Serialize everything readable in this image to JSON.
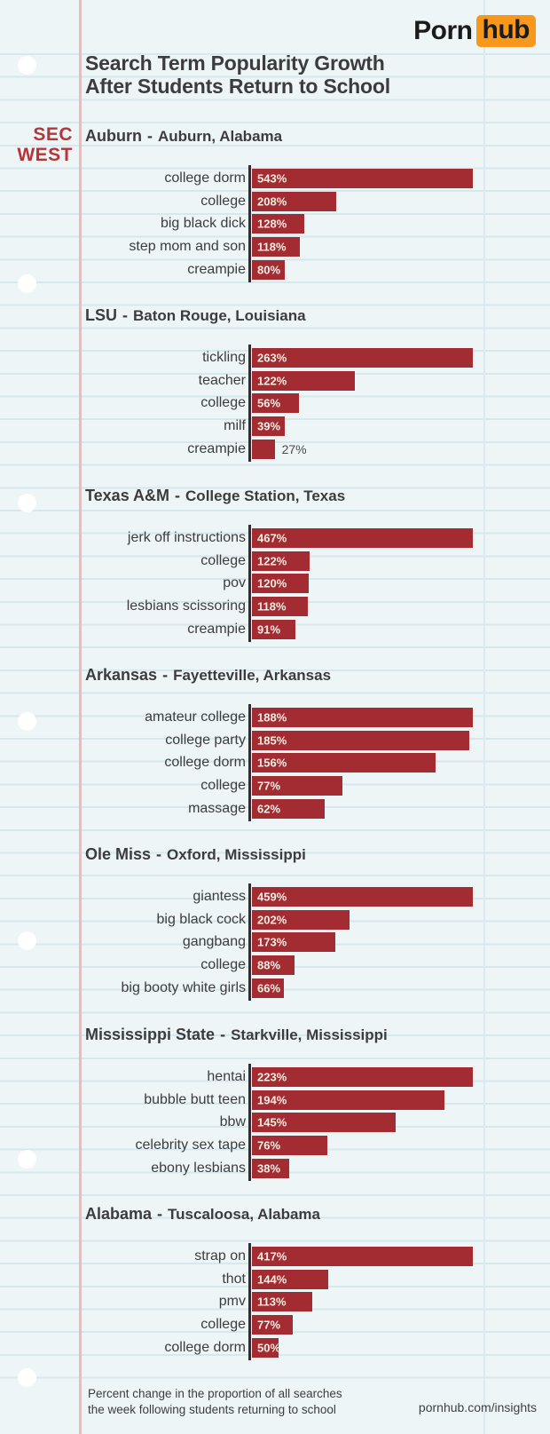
{
  "brand": {
    "porn": "Porn",
    "hub": "hub"
  },
  "header": {
    "title_line1": "Search Term Popularity Growth",
    "title_line2": "After Students Return to School"
  },
  "division": {
    "line1": "SEC",
    "line2": "WEST"
  },
  "heading_separator": "-",
  "chart_data": [
    {
      "type": "bar",
      "school": "Auburn",
      "location": "Auburn, Alabama",
      "unit": "%",
      "rows": [
        {
          "term": "college dorm",
          "value": 543,
          "label": "543%"
        },
        {
          "term": "college",
          "value": 208,
          "label": "208%"
        },
        {
          "term": "big black dick",
          "value": 128,
          "label": "128%"
        },
        {
          "term": "step mom and son",
          "value": 118,
          "label": "118%"
        },
        {
          "term": "creampie",
          "value": 80,
          "label": "80%"
        }
      ]
    },
    {
      "type": "bar",
      "school": "LSU",
      "location": "Baton Rouge, Louisiana",
      "unit": "%",
      "rows": [
        {
          "term": "tickling",
          "value": 263,
          "label": "263%"
        },
        {
          "term": "teacher",
          "value": 122,
          "label": "122%"
        },
        {
          "term": "college",
          "value": 56,
          "label": "56%"
        },
        {
          "term": "milf",
          "value": 39,
          "label": "39%"
        },
        {
          "term": "creampie",
          "value": 27,
          "label": "27%",
          "label_outside": true
        }
      ]
    },
    {
      "type": "bar",
      "school": "Texas A&M",
      "location": "College Station, Texas",
      "unit": "%",
      "rows": [
        {
          "term": "jerk off instructions",
          "value": 467,
          "label": "467%"
        },
        {
          "term": "college",
          "value": 122,
          "label": "122%"
        },
        {
          "term": "pov",
          "value": 120,
          "label": "120%"
        },
        {
          "term": "lesbians scissoring",
          "value": 118,
          "label": "118%"
        },
        {
          "term": "creampie",
          "value": 91,
          "label": "91%"
        }
      ]
    },
    {
      "type": "bar",
      "school": "Arkansas",
      "location": "Fayetteville, Arkansas",
      "unit": "%",
      "rows": [
        {
          "term": "amateur college",
          "value": 188,
          "label": "188%"
        },
        {
          "term": "college party",
          "value": 185,
          "label": "185%"
        },
        {
          "term": "college dorm",
          "value": 156,
          "label": "156%"
        },
        {
          "term": "college",
          "value": 77,
          "label": "77%"
        },
        {
          "term": "massage",
          "value": 62,
          "label": "62%"
        }
      ]
    },
    {
      "type": "bar",
      "school": "Ole Miss",
      "location": "Oxford, Mississippi",
      "unit": "%",
      "rows": [
        {
          "term": "giantess",
          "value": 459,
          "label": "459%"
        },
        {
          "term": "big black cock",
          "value": 202,
          "label": "202%"
        },
        {
          "term": "gangbang",
          "value": 173,
          "label": "173%"
        },
        {
          "term": "college",
          "value": 88,
          "label": "88%"
        },
        {
          "term": "big booty white girls",
          "value": 66,
          "label": "66%"
        }
      ]
    },
    {
      "type": "bar",
      "school": "Mississippi State",
      "location": "Starkville, Mississippi",
      "unit": "%",
      "rows": [
        {
          "term": "hentai",
          "value": 223,
          "label": "223%"
        },
        {
          "term": "bubble butt teen",
          "value": 194,
          "label": "194%"
        },
        {
          "term": "bbw",
          "value": 145,
          "label": "145%"
        },
        {
          "term": "celebrity sex tape",
          "value": 76,
          "label": "76%"
        },
        {
          "term": "ebony lesbians",
          "value": 38,
          "label": "38%"
        }
      ]
    },
    {
      "type": "bar",
      "school": "Alabama",
      "location": "Tuscaloosa, Alabama",
      "unit": "%",
      "rows": [
        {
          "term": "strap on",
          "value": 417,
          "label": "417%"
        },
        {
          "term": "thot",
          "value": 144,
          "label": "144%"
        },
        {
          "term": "pmv",
          "value": 113,
          "label": "113%"
        },
        {
          "term": "college",
          "value": 77,
          "label": "77%"
        },
        {
          "term": "college dorm",
          "value": 50,
          "label": "50%"
        }
      ]
    }
  ],
  "footer": {
    "note_line1": "Percent change in the proportion of all searches",
    "note_line2": "the week following students returning to school",
    "link": "pornhub.com/insights"
  },
  "colors": {
    "paper": "#EDF5F6",
    "line": "#D6E8EC",
    "vline": "#D9EBEE",
    "margin": "#F3B9B9",
    "ink": "#3C3C3E",
    "bar": "#A32C33",
    "val": "#F7EFE4",
    "red": "#B4363A",
    "orange": "#F7981D",
    "logo_ink": "#1B1B1B"
  }
}
